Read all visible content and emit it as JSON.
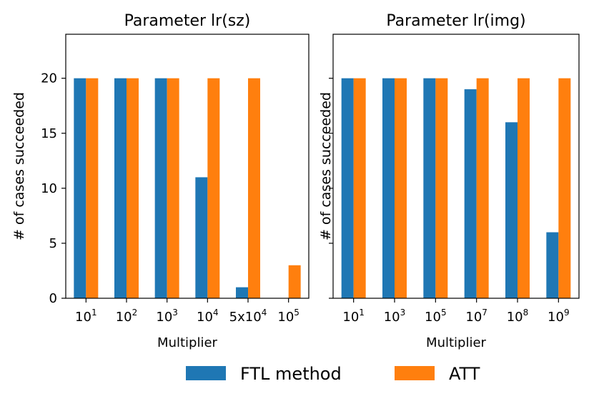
{
  "chart_data": [
    {
      "type": "bar",
      "title": "Parameter lr(sz)",
      "xlabel": "Multiplier",
      "ylabel": "# of cases succeeded",
      "ylim": [
        0,
        24
      ],
      "yticks": [
        "0",
        "5",
        "10",
        "15",
        "20"
      ],
      "show_ytick_labels": true,
      "categories": [
        {
          "base": "10",
          "exp": "1"
        },
        {
          "base": "10",
          "exp": "2"
        },
        {
          "base": "10",
          "exp": "3"
        },
        {
          "base": "10",
          "exp": "4"
        },
        {
          "base": "5x10",
          "exp": "4"
        },
        {
          "base": "10",
          "exp": "5"
        }
      ],
      "series": [
        {
          "name": "FTL method",
          "values": [
            20,
            20,
            20,
            11,
            1,
            0
          ]
        },
        {
          "name": "ATT",
          "values": [
            20,
            20,
            20,
            20,
            20,
            3
          ]
        }
      ]
    },
    {
      "type": "bar",
      "title": "Parameter lr(img)",
      "xlabel": "Multiplier",
      "ylabel": "# of cases succeeded",
      "ylim": [
        0,
        24
      ],
      "yticks": [
        "0",
        "5",
        "10",
        "15",
        "20"
      ],
      "show_ytick_labels": false,
      "categories": [
        {
          "base": "10",
          "exp": "1"
        },
        {
          "base": "10",
          "exp": "3"
        },
        {
          "base": "10",
          "exp": "5"
        },
        {
          "base": "10",
          "exp": "7"
        },
        {
          "base": "10",
          "exp": "8"
        },
        {
          "base": "10",
          "exp": "9"
        }
      ],
      "series": [
        {
          "name": "FTL method",
          "values": [
            20,
            20,
            20,
            19,
            16,
            6
          ]
        },
        {
          "name": "ATT",
          "values": [
            20,
            20,
            20,
            20,
            20,
            20
          ]
        }
      ]
    }
  ],
  "legend": {
    "placement": "bottom-center",
    "items": [
      {
        "label": "FTL method",
        "color": "#1f77b4"
      },
      {
        "label": "ATT",
        "color": "#ff7f0e"
      }
    ]
  },
  "colors": {
    "ftl": "#1f77b4",
    "att": "#ff7f0e"
  }
}
